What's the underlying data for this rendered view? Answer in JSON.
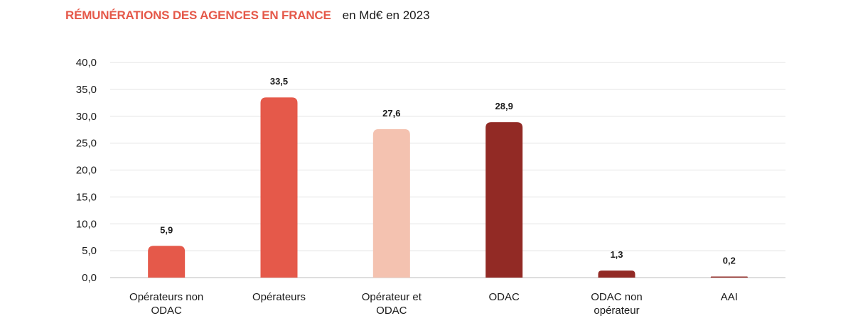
{
  "header": {
    "title": "RÉMUNÉRATIONS DES AGENCES EN FRANCE",
    "subtitle": "en Md€ en 2023"
  },
  "chart_data": {
    "type": "bar",
    "title": "RÉMUNÉRATIONS DES AGENCES EN FRANCE",
    "subtitle": "en Md€ en 2023",
    "xlabel": "",
    "ylabel": "",
    "categories": [
      [
        "Opérateurs non",
        "ODAC"
      ],
      [
        "Opérateurs"
      ],
      [
        "Opérateur et",
        "ODAC"
      ],
      [
        "ODAC"
      ],
      [
        "ODAC non",
        "opérateur"
      ],
      [
        "AAI"
      ]
    ],
    "values": [
      5.9,
      33.5,
      27.6,
      28.9,
      1.3,
      0.2
    ],
    "value_labels": [
      "5,9",
      "33,5",
      "27,6",
      "28,9",
      "1,3",
      "0,2"
    ],
    "colors": [
      "#e5594a",
      "#e5594a",
      "#f4c2b0",
      "#922a25",
      "#922a25",
      "#922a25"
    ],
    "ylim": [
      0,
      40
    ],
    "yticks": [
      "0,0",
      "5,0",
      "10,0",
      "15,0",
      "20,0",
      "25,0",
      "30,0",
      "35,0",
      "40,0"
    ],
    "grid": true,
    "legend": "none"
  }
}
